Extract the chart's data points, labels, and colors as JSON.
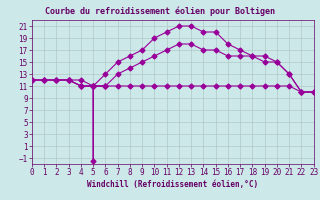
{
  "title": "Courbe du refroidissement éolien pour Boltigen",
  "xlabel": "Windchill (Refroidissement éolien,°C)",
  "bg_color": "#cce8e8",
  "grid_color": "#b0c8c8",
  "line_color": "#990099",
  "xlim": [
    0,
    23
  ],
  "ylim": [
    -2,
    22
  ],
  "xticks": [
    0,
    1,
    2,
    3,
    4,
    5,
    6,
    7,
    8,
    9,
    10,
    11,
    12,
    13,
    14,
    15,
    16,
    17,
    18,
    19,
    20,
    21,
    22,
    23
  ],
  "yticks": [
    -1,
    1,
    3,
    5,
    7,
    9,
    11,
    13,
    15,
    17,
    19,
    21
  ],
  "line1_x": [
    0,
    1,
    2,
    3,
    4,
    5,
    6,
    7,
    8,
    9,
    10,
    11,
    12,
    13,
    14,
    15,
    16,
    17,
    18,
    19,
    20,
    21,
    22,
    23
  ],
  "line1_y": [
    12,
    12,
    12,
    12,
    11,
    11,
    11,
    11,
    11,
    11,
    11,
    11,
    11,
    11,
    11,
    11,
    11,
    11,
    11,
    11,
    11,
    11,
    10,
    10
  ],
  "line2_x": [
    0,
    1,
    2,
    3,
    4,
    5,
    6,
    7,
    8,
    9,
    10,
    11,
    12,
    13,
    14,
    15,
    16,
    17,
    18,
    19,
    20,
    21,
    22,
    23
  ],
  "line2_y": [
    12,
    12,
    12,
    12,
    11,
    11,
    13,
    15,
    16,
    17,
    19,
    20,
    21,
    21,
    20,
    20,
    18,
    17,
    16,
    15,
    15,
    13,
    10,
    10
  ],
  "line3_x": [
    0,
    1,
    2,
    3,
    4,
    5,
    6,
    7,
    8,
    9,
    10,
    11,
    12,
    13,
    14,
    15,
    16,
    17,
    18,
    19,
    20,
    21,
    22,
    23
  ],
  "line3_y": [
    12,
    12,
    12,
    12,
    12,
    11,
    11,
    13,
    14,
    15,
    16,
    17,
    18,
    18,
    17,
    17,
    16,
    16,
    16,
    16,
    15,
    13,
    10,
    10
  ],
  "line4_x": [
    3,
    4,
    5,
    5,
    5,
    6
  ],
  "line4_y": [
    12,
    11,
    11,
    -1.5,
    11,
    11
  ],
  "marker": "D",
  "markersize": 2.5,
  "tick_fontsize": 5.5,
  "xlabel_fontsize": 5.5,
  "title_fontsize": 6.0,
  "text_color": "#660066",
  "spine_color": "#660066"
}
